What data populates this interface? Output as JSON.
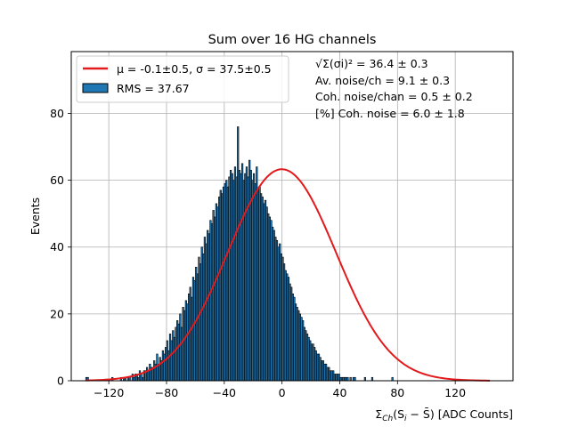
{
  "chart_data": {
    "type": "bar",
    "title": "Sum over 16 HG channels",
    "ylabel": "Events",
    "xlabel_main": "Σ",
    "xlabel_sub": "Ch",
    "xlabel_rest": "(S",
    "xlabel_sub2": "i",
    "xlabel_tail": " − S̄) [ADC Counts]",
    "xlim": [
      -146,
      160
    ],
    "ylim": [
      0,
      98.5
    ],
    "xticks": [
      -120,
      -80,
      -40,
      0,
      40,
      80,
      120
    ],
    "yticks": [
      0,
      20,
      40,
      60,
      80
    ],
    "grid": true,
    "hist_color": "#1f77b4",
    "fit_color": "#e31a1c",
    "bin_width": 1,
    "bin_start": -136,
    "hist_values": [
      1,
      1,
      0,
      0,
      0,
      0,
      0,
      0,
      0,
      0,
      0,
      0,
      0,
      0,
      0,
      0,
      0,
      0,
      1,
      0,
      0,
      0,
      0,
      0,
      1,
      0,
      1,
      1,
      0,
      1,
      1,
      0,
      2,
      1,
      2,
      2,
      1,
      3,
      2,
      1,
      3,
      3,
      4,
      3,
      5,
      4,
      4,
      6,
      5,
      8,
      5,
      7,
      6,
      9,
      8,
      10,
      12,
      9,
      14,
      12,
      15,
      13,
      16,
      18,
      17,
      20,
      16,
      22,
      21,
      24,
      23,
      26,
      28,
      25,
      31,
      30,
      34,
      32,
      37,
      35,
      40,
      38,
      43,
      41,
      45,
      44,
      48,
      47,
      51,
      49,
      53,
      52,
      55,
      57,
      56,
      58,
      59,
      60,
      58,
      61,
      63,
      62,
      60,
      64,
      61,
      76,
      63,
      62,
      65,
      60,
      62,
      64,
      61,
      66,
      63,
      60,
      62,
      59,
      64,
      57,
      58,
      56,
      55,
      53,
      54,
      52,
      50,
      49,
      48,
      46,
      45,
      43,
      42,
      40,
      41,
      38,
      37,
      35,
      33,
      32,
      31,
      29,
      28,
      26,
      25,
      23,
      22,
      21,
      20,
      19,
      18,
      16,
      15,
      14,
      13,
      12,
      11,
      11,
      10,
      9,
      8,
      8,
      7,
      6,
      6,
      5,
      5,
      4,
      4,
      3,
      3,
      3,
      2,
      2,
      2,
      2,
      1,
      1,
      1,
      1,
      1,
      1,
      0,
      1,
      0,
      1,
      1,
      0,
      0,
      0,
      0,
      0,
      0,
      1,
      0,
      0,
      0,
      0,
      1,
      0,
      0,
      0,
      0,
      0,
      0,
      0,
      0,
      0,
      0,
      0,
      0,
      0,
      1
    ],
    "fit": {
      "mu": -0.1,
      "sigma": 37.5,
      "amplitude": 63.3,
      "x_range": [
        -136,
        144
      ]
    },
    "legend": {
      "placement": "top-left",
      "fit_label": "μ = -0.1±0.5, σ = 37.5±0.5",
      "hist_label": "RMS = 37.67"
    },
    "annotations": [
      "√Σ(σi)² = 36.4 ± 0.3",
      "Av. noise/ch  = 9.1 ± 0.3",
      "Coh. noise/chan  = 0.5 ± 0.2",
      "[%] Coh. noise  = 6.0 ± 1.8"
    ]
  }
}
